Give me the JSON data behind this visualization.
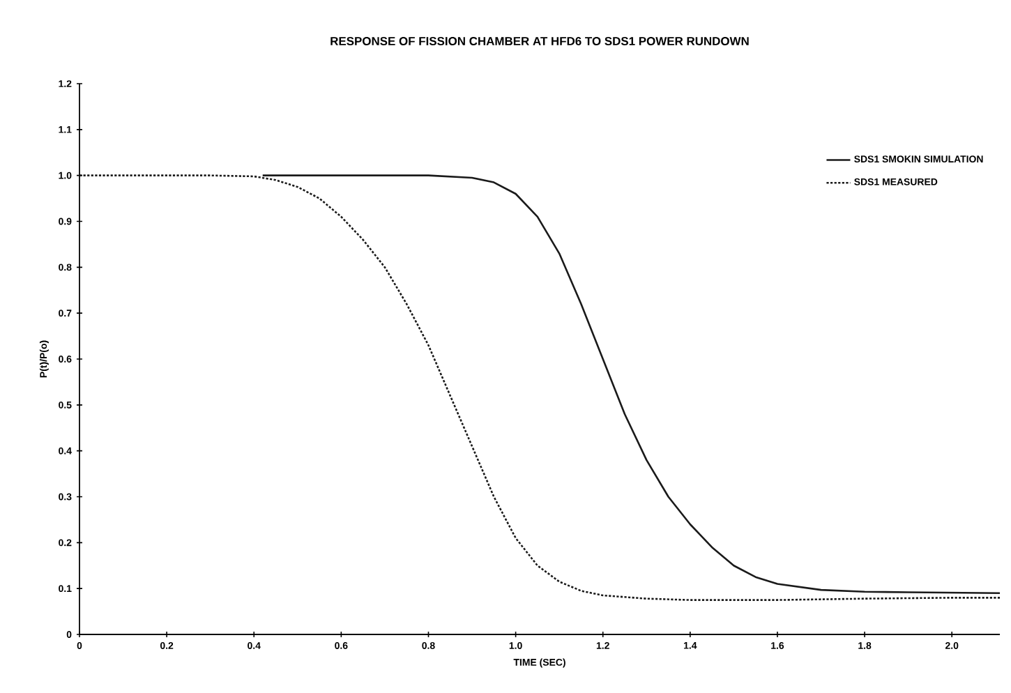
{
  "chart_data": {
    "type": "line",
    "title": "RESPONSE OF FISSION CHAMBER AT HFD6 TO SDS1 POWER RUNDOWN",
    "xlabel": "TIME (SEC)",
    "ylabel": "P(t)/P(o)",
    "xlim": [
      0,
      2.11
    ],
    "ylim": [
      0,
      1.2
    ],
    "xticks": [
      0,
      0.2,
      0.4,
      0.6,
      0.8,
      {
        "value": 1,
        "label": "1.0"
      },
      1.2,
      1.4,
      1.6,
      1.8,
      {
        "value": 2,
        "label": "2.0"
      }
    ],
    "yticks": [
      0,
      0.1,
      0.2,
      0.3,
      0.4,
      0.5,
      0.6,
      0.7,
      0.8,
      0.9,
      {
        "value": 1,
        "label": "1.0"
      },
      1.1,
      1.2
    ],
    "legend": "top right",
    "grid": false,
    "marker": "none",
    "series": [
      {
        "name": "SDS1 SMOKIN SIMULATION",
        "color": "#1a1a1a",
        "line_style": "solid",
        "x": [
          0.42,
          0.8,
          0.9,
          0.95,
          1.0,
          1.05,
          1.1,
          1.15,
          1.2,
          1.25,
          1.3,
          1.35,
          1.4,
          1.45,
          1.5,
          1.55,
          1.6,
          1.7,
          1.8,
          1.9,
          2.11
        ],
        "values": [
          1,
          1,
          0.995,
          0.985,
          0.96,
          0.91,
          0.83,
          0.72,
          0.6,
          0.48,
          0.38,
          0.3,
          0.24,
          0.19,
          0.15,
          0.125,
          0.11,
          0.097,
          0.093,
          0.092,
          0.09
        ]
      },
      {
        "name": "SDS1 MEASURED",
        "color": "#1a1a1a",
        "line_style": "dotted",
        "x": [
          0,
          0.3,
          0.4,
          0.45,
          0.5,
          0.55,
          0.6,
          0.65,
          0.7,
          0.75,
          0.8,
          0.85,
          0.9,
          0.95,
          1.0,
          1.05,
          1.1,
          1.15,
          1.2,
          1.3,
          1.4,
          1.6,
          1.8,
          2.0,
          2.11
        ],
        "values": [
          1,
          1,
          0.998,
          0.99,
          0.975,
          0.95,
          0.91,
          0.86,
          0.8,
          0.72,
          0.63,
          0.52,
          0.41,
          0.3,
          0.21,
          0.15,
          0.115,
          0.095,
          0.085,
          0.078,
          0.075,
          0.075,
          0.078,
          0.08,
          0.08
        ]
      }
    ]
  }
}
